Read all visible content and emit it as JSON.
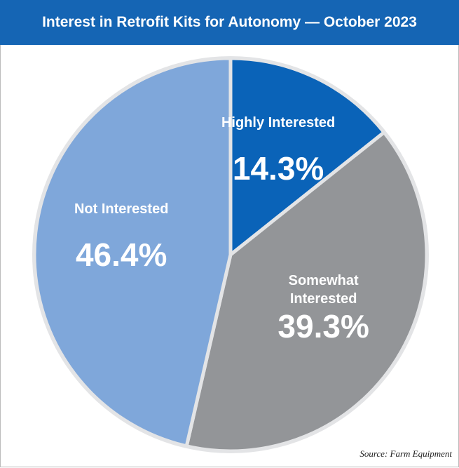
{
  "chart_data": {
    "type": "pie",
    "title": "Interest in Retrofit Kits for Autonomy — October 2023",
    "categories": [
      "Highly Interested",
      "Somewhat Interested",
      "Not Interested"
    ],
    "values": [
      14.3,
      39.3,
      46.4
    ],
    "value_labels": [
      "14.3%",
      "39.3%",
      "46.4%"
    ],
    "colors": [
      "#0a63b8",
      "#939598",
      "#7fa7da"
    ],
    "source": "Source: Farm Equipment"
  }
}
